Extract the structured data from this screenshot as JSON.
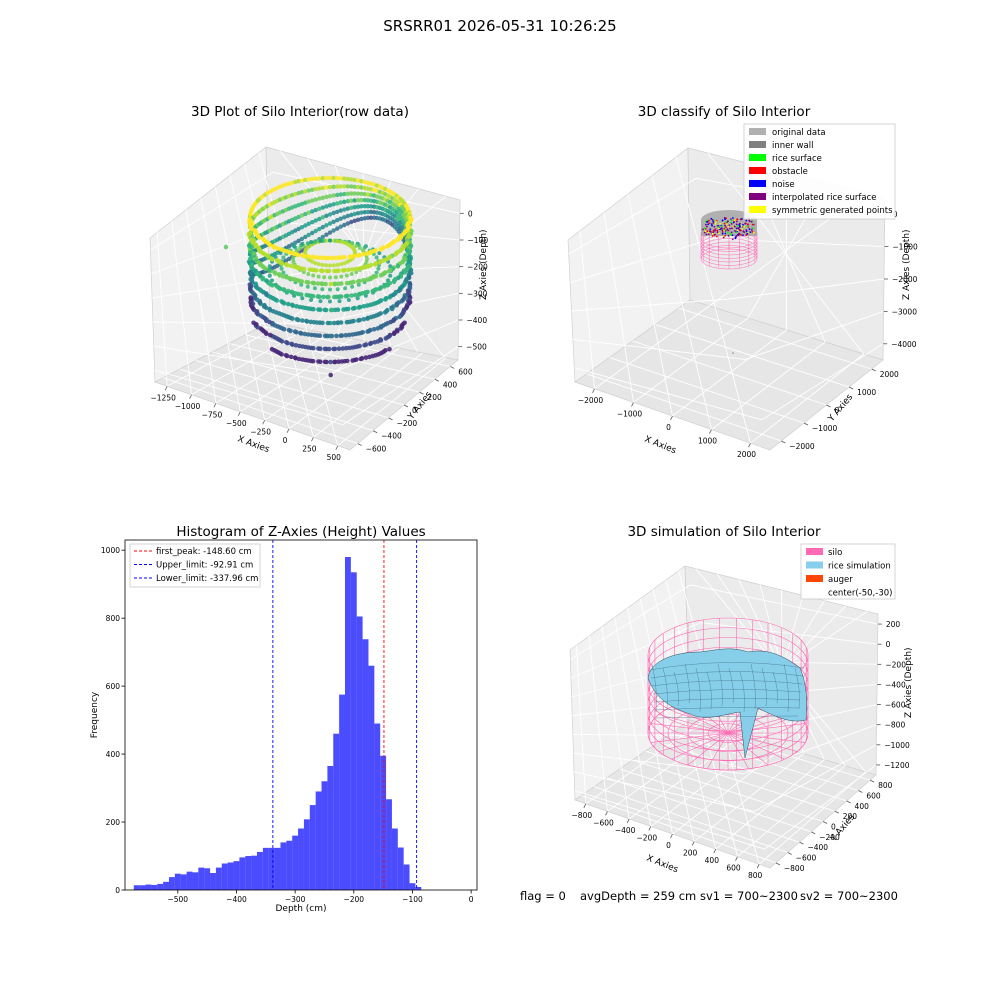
{
  "suptitle": "SRSRR01 2026-05-31 10:26:25",
  "panel1": {
    "title": "3D Plot of Silo Interior(row data)",
    "xlabel": "X Axies",
    "ylabel": "Y Axies",
    "zlabel": "Z Axies (Depth)",
    "xticks": [
      "−1250",
      "−1000",
      "−750",
      "−500",
      "−250",
      "0",
      "250",
      "500"
    ],
    "yticks": [
      "−600",
      "−400",
      "−200",
      "0",
      "200",
      "400",
      "600"
    ],
    "zticks": [
      "0",
      "−100",
      "−200",
      "−300",
      "−400",
      "−500"
    ]
  },
  "panel2": {
    "title": "3D classify of Silo Interior",
    "xlabel": "X Axies",
    "ylabel": "Y Axies",
    "zlabel": "Z Axies (Depth)",
    "xticks": [
      "−2000",
      "−1000",
      "0",
      "1000",
      "2000"
    ],
    "yticks": [
      "−2000",
      "−1000",
      "0",
      "1000",
      "2000"
    ],
    "zticks": [
      "0",
      "−1000",
      "−2000",
      "−3000",
      "−4000"
    ],
    "legend": [
      {
        "label": "original data",
        "color": "#b0b0b0"
      },
      {
        "label": "inner wall",
        "color": "#808080"
      },
      {
        "label": "rice surface",
        "color": "#00ff00"
      },
      {
        "label": "obstacle",
        "color": "#ff0000"
      },
      {
        "label": "noise",
        "color": "#0000ff"
      },
      {
        "label": "interpolated rice surface",
        "color": "#800080"
      },
      {
        "label": "symmetric generated points",
        "color": "#ffff00"
      }
    ]
  },
  "panel4": {
    "title": "3D simulation of Silo Interior",
    "xlabel": "X Axies",
    "ylabel": "Y Axies",
    "zlabel": "Z Axies (Depth)",
    "xticks": [
      "−800",
      "−600",
      "−400",
      "−200",
      "0",
      "200",
      "400",
      "600",
      "800"
    ],
    "yticks": [
      "−800",
      "−600",
      "−400",
      "−200",
      "0",
      "200",
      "400",
      "600",
      "800"
    ],
    "zticks": [
      "200",
      "0",
      "−200",
      "−400",
      "−600",
      "−800",
      "−1000",
      "−1200"
    ],
    "legend": [
      {
        "label": "silo",
        "color": "#ff69b4"
      },
      {
        "label": "rice simulation",
        "color": "#87ceeb"
      },
      {
        "label": "auger",
        "color": "#ff4500"
      },
      {
        "label": "center(-50,-30)",
        "color": ""
      }
    ]
  },
  "status": {
    "flag": "flag = 0",
    "avg": "avgDepth = 259 cm",
    "sv1": "sv1 = 700~2300",
    "sv2": "sv2 = 700~2300"
  },
  "chart_data": {
    "type": "bar",
    "title": "Histogram of Z-Axies (Height) Values",
    "xlabel": "Depth (cm)",
    "ylabel": "Frequency",
    "xlim": [
      -590,
      10
    ],
    "ylim": [
      0,
      1030
    ],
    "xticks": [
      -500,
      -400,
      -300,
      -200,
      -100,
      0
    ],
    "yticks": [
      0,
      200,
      400,
      600,
      800,
      1000
    ],
    "bin_start": -575,
    "bin_width": 10,
    "values": [
      14,
      14,
      16,
      15,
      18,
      24,
      38,
      48,
      46,
      54,
      52,
      66,
      64,
      50,
      66,
      78,
      81,
      85,
      96,
      100,
      101,
      112,
      124,
      124,
      124,
      140,
      145,
      160,
      181,
      208,
      250,
      290,
      320,
      365,
      460,
      575,
      980,
      935,
      805,
      738,
      660,
      490,
      395,
      267,
      181,
      125,
      75,
      20,
      9
    ],
    "color": "#0000ff",
    "lines": [
      {
        "label": "first_peak: -148.60 cm",
        "x": -148.6,
        "color": "#ff0000"
      },
      {
        "label": "Upper_limit: -92.91 cm",
        "x": -92.91,
        "color": "#0000ff"
      },
      {
        "label": "Lower_limit: -337.96 cm",
        "x": -337.96,
        "color": "#0000ff"
      }
    ]
  }
}
